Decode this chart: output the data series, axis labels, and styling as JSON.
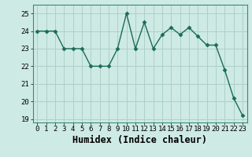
{
  "x": [
    0,
    1,
    2,
    3,
    4,
    5,
    6,
    7,
    8,
    9,
    10,
    11,
    12,
    13,
    14,
    15,
    16,
    17,
    18,
    19,
    20,
    21,
    22,
    23
  ],
  "y": [
    24,
    24,
    24,
    23,
    23,
    23,
    22,
    22,
    22,
    23,
    25,
    23,
    24.5,
    23,
    23.8,
    24.2,
    23.8,
    24.2,
    23.7,
    23.2,
    23.2,
    21.8,
    20.2,
    19.2
  ],
  "line_color": "#1a6b5a",
  "marker": "D",
  "marker_size": 2.5,
  "xlabel": "Humidex (Indice chaleur)",
  "xlim": [
    -0.5,
    23.5
  ],
  "ylim": [
    18.8,
    25.5
  ],
  "yticks": [
    19,
    20,
    21,
    22,
    23,
    24,
    25
  ],
  "xticks": [
    0,
    1,
    2,
    3,
    4,
    5,
    6,
    7,
    8,
    9,
    10,
    11,
    12,
    13,
    14,
    15,
    16,
    17,
    18,
    19,
    20,
    21,
    22,
    23
  ],
  "bg_color": "#ceeae4",
  "grid_color": "#aed0ca",
  "tick_fontsize": 6.5,
  "xlabel_fontsize": 8.5,
  "line_width": 1.0
}
